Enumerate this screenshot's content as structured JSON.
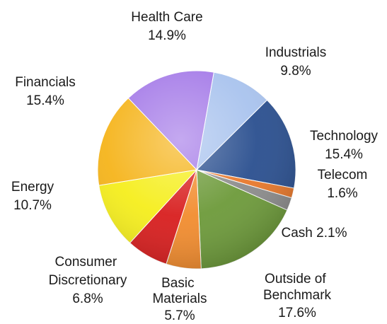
{
  "chart_data": {
    "type": "pie",
    "title": "",
    "slices": [
      {
        "label": "Industrials",
        "value": 9.8,
        "value_text": "9.8%",
        "color": "#a9c3ee"
      },
      {
        "label": "Technology",
        "value": 15.4,
        "value_text": "15.4%",
        "color": "#2a4f8f"
      },
      {
        "label": "Telecom",
        "value": 1.6,
        "value_text": "1.6%",
        "color": "#e8782b"
      },
      {
        "label": "Cash",
        "value": 2.1,
        "value_text": "2.1%",
        "color": "#8c8c8c"
      },
      {
        "label": "Outside of Benchmark",
        "value": 17.6,
        "value_text": "17.6%",
        "color": "#6d9a3a"
      },
      {
        "label": "Basic Materials",
        "value": 5.7,
        "value_text": "5.7%",
        "color": "#f28c2e"
      },
      {
        "label": "Consumer Discretionary",
        "value": 6.8,
        "value_text": "6.8%",
        "color": "#d81e1e"
      },
      {
        "label": "Energy",
        "value": 10.7,
        "value_text": "10.7%",
        "color": "#f5ee1c"
      },
      {
        "label": "Financials",
        "value": 15.4,
        "value_text": "15.4%",
        "color": "#f5b41b"
      },
      {
        "label": "Health Care",
        "value": 14.9,
        "value_text": "14.9%",
        "color": "#a57be8"
      }
    ],
    "legend": "none",
    "data_labels": "outside"
  }
}
